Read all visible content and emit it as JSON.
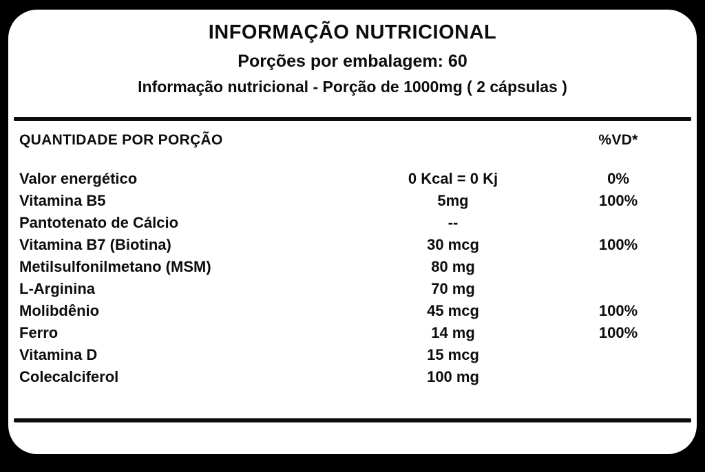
{
  "label": {
    "title": "INFORMAÇÃO NUTRICIONAL",
    "servings_line": "Porções por embalagem: 60",
    "portion_line": "Informação nutricional - Porção de 1000mg ( 2 cápsulas )",
    "table": {
      "header": {
        "quantity": "QUANTIDADE POR PORÇÃO",
        "dv": "%VD*"
      },
      "rows": [
        {
          "name": "Valor energético",
          "amount": "0 Kcal = 0 Kj",
          "dv": "0%"
        },
        {
          "name": "Vitamina B5",
          "amount": "5mg",
          "dv": "100%"
        },
        {
          "name": "Pantotenato de Cálcio",
          "amount": "--",
          "dv": ""
        },
        {
          "name": "Vitamina B7 (Biotina)",
          "amount": "30 mcg",
          "dv": "100%"
        },
        {
          "name": "Metilsulfonilmetano (MSM)",
          "amount": "80 mg",
          "dv": ""
        },
        {
          "name": "L-Arginina",
          "amount": "70 mg",
          "dv": ""
        },
        {
          "name": "Molibdênio",
          "amount": "45 mcg",
          "dv": "100%"
        },
        {
          "name": "Ferro",
          "amount": "14 mg",
          "dv": "100%"
        },
        {
          "name": "Vitamina D",
          "amount": "15 mcg",
          "dv": ""
        },
        {
          "name": "Colecalciferol",
          "amount": "100 mg",
          "dv": ""
        }
      ]
    },
    "colors": {
      "background": "#000000",
      "card": "#ffffff",
      "text": "#0d0d0d"
    }
  }
}
